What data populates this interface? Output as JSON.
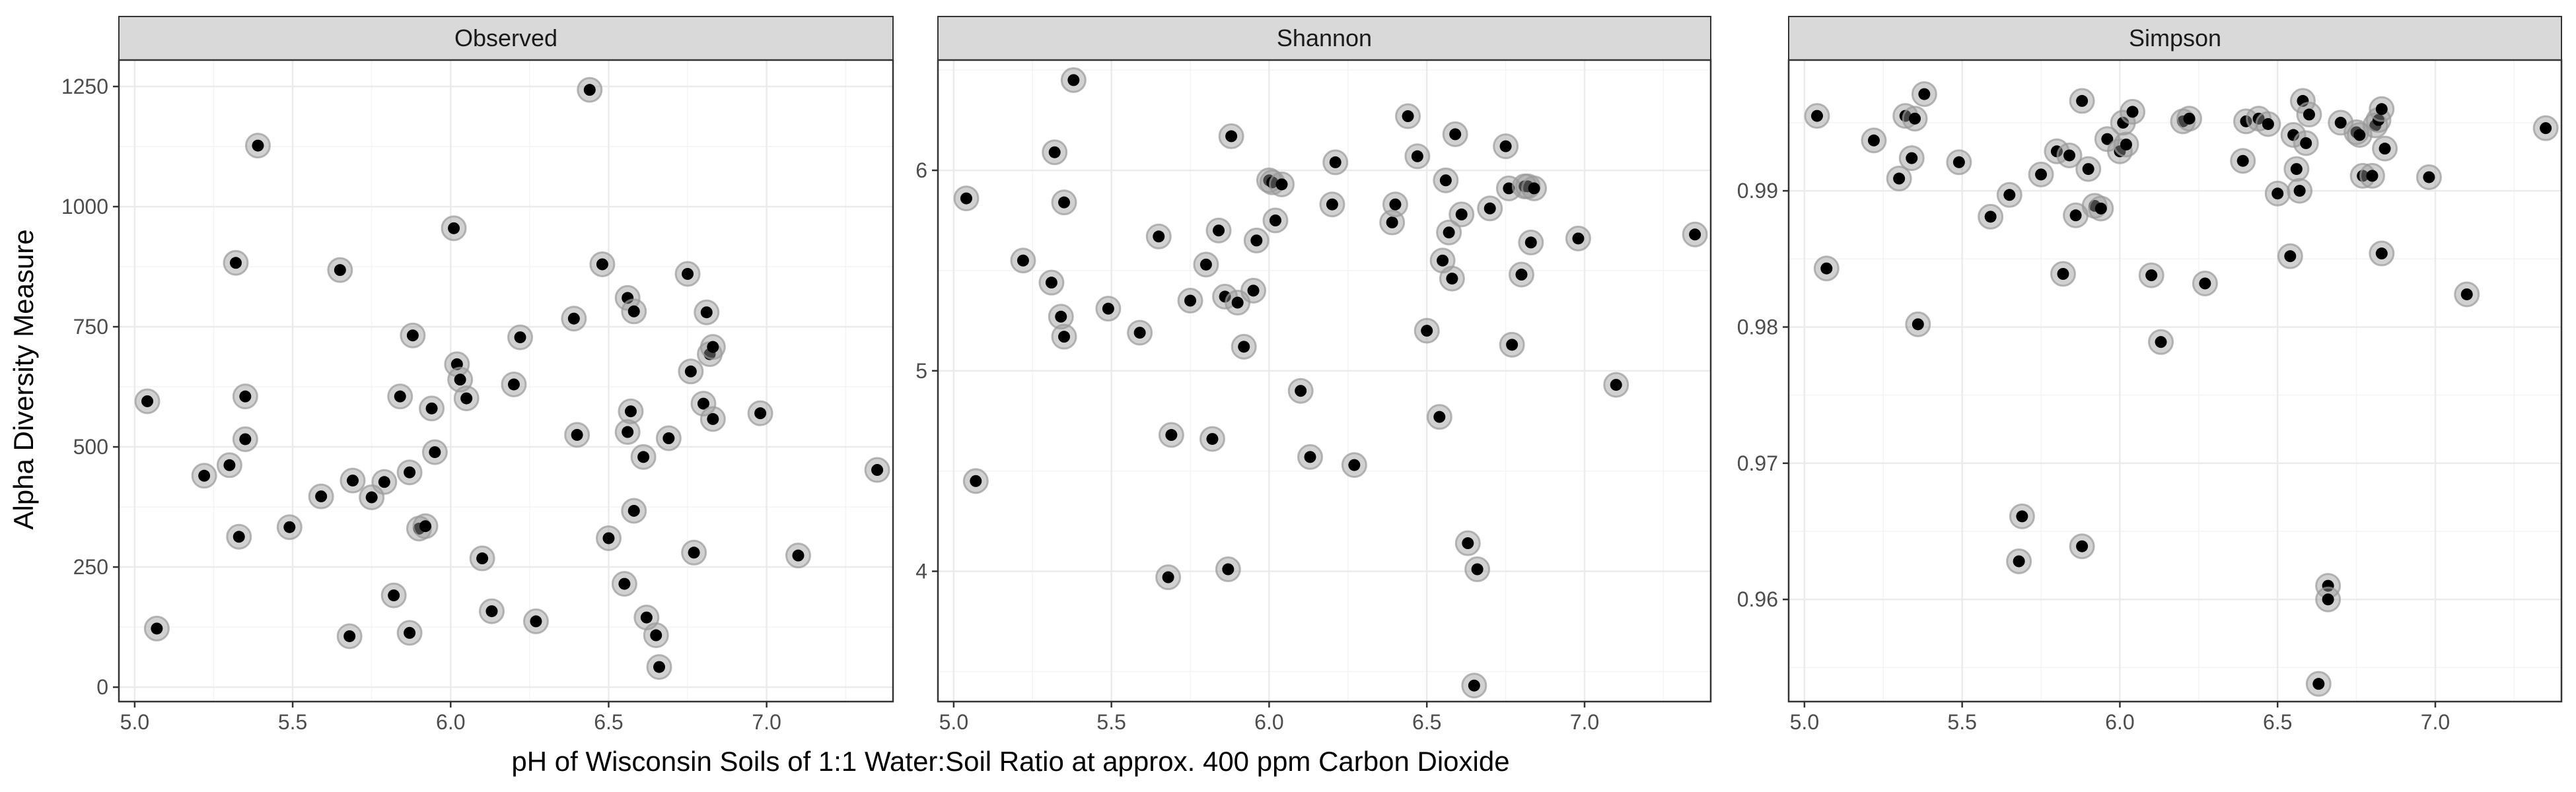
{
  "chart_data": {
    "type": "scatter",
    "facets_layout": "1 row, 3 columns, free y scales",
    "xlabel": "pH of Wisconsin Soils of 1:1 Water:Soil Ratio at approx. 400 ppm Carbon Dioxide",
    "ylabel": "Alpha Diversity Measure",
    "grid": true,
    "legend": "none",
    "colors": {
      "point": "#000000",
      "halo": "#9a9a9a",
      "strip_fill": "#d9d9d9",
      "panel_border": "#333333",
      "grid_major": "#ebebeb",
      "grid_minor": "#f4f4f4"
    },
    "panels": [
      {
        "name": "Observed",
        "xlim": [
          4.95,
          7.4
        ],
        "ylim": [
          -30,
          1305
        ],
        "x_ticks": [
          5.0,
          5.5,
          6.0,
          6.5,
          7.0
        ],
        "x_tick_labels": [
          "5.0",
          "5.5",
          "6.0",
          "6.5",
          "7.0"
        ],
        "y_ticks": [
          0,
          250,
          500,
          750,
          1000,
          1250
        ],
        "y_tick_labels": [
          "0",
          "250",
          "500",
          "750",
          "1000",
          "1250"
        ],
        "points": [
          [
            5.04,
            595
          ],
          [
            5.07,
            122
          ],
          [
            5.22,
            440
          ],
          [
            5.3,
            462
          ],
          [
            5.32,
            883
          ],
          [
            5.33,
            313
          ],
          [
            5.35,
            516
          ],
          [
            5.35,
            605
          ],
          [
            5.39,
            1127
          ],
          [
            5.49,
            333
          ],
          [
            5.59,
            397
          ],
          [
            5.65,
            868
          ],
          [
            5.68,
            106
          ],
          [
            5.69,
            430
          ],
          [
            5.75,
            395
          ],
          [
            5.79,
            427
          ],
          [
            5.82,
            191
          ],
          [
            5.84,
            605
          ],
          [
            5.87,
            447
          ],
          [
            5.87,
            113
          ],
          [
            5.88,
            732
          ],
          [
            5.9,
            330
          ],
          [
            5.92,
            335
          ],
          [
            5.94,
            580
          ],
          [
            5.95,
            489
          ],
          [
            6.01,
            955
          ],
          [
            6.02,
            672
          ],
          [
            6.03,
            640
          ],
          [
            6.05,
            601
          ],
          [
            6.1,
            268
          ],
          [
            6.13,
            158
          ],
          [
            6.2,
            630
          ],
          [
            6.22,
            728
          ],
          [
            6.27,
            137
          ],
          [
            6.39,
            767
          ],
          [
            6.4,
            525
          ],
          [
            6.44,
            1243
          ],
          [
            6.48,
            880
          ],
          [
            6.5,
            310
          ],
          [
            6.55,
            215
          ],
          [
            6.56,
            810
          ],
          [
            6.56,
            531
          ],
          [
            6.57,
            574
          ],
          [
            6.58,
            367
          ],
          [
            6.58,
            782
          ],
          [
            6.61,
            479
          ],
          [
            6.62,
            145
          ],
          [
            6.65,
            108
          ],
          [
            6.66,
            42
          ],
          [
            6.69,
            518
          ],
          [
            6.75,
            860
          ],
          [
            6.76,
            657
          ],
          [
            6.77,
            280
          ],
          [
            6.8,
            590
          ],
          [
            6.81,
            780
          ],
          [
            6.82,
            693
          ],
          [
            6.83,
            558
          ],
          [
            6.83,
            708
          ],
          [
            6.98,
            570
          ],
          [
            7.1,
            274
          ],
          [
            7.35,
            452
          ]
        ]
      },
      {
        "name": "Shannon",
        "xlim": [
          4.95,
          7.4
        ],
        "ylim": [
          3.35,
          6.55
        ],
        "x_ticks": [
          5.0,
          5.5,
          6.0,
          6.5,
          7.0
        ],
        "x_tick_labels": [
          "5.0",
          "5.5",
          "6.0",
          "6.5",
          "7.0"
        ],
        "y_ticks": [
          4,
          5,
          6
        ],
        "y_tick_labels": [
          "4",
          "5",
          "6"
        ],
        "points": [
          [
            5.04,
            5.86
          ],
          [
            5.07,
            4.45
          ],
          [
            5.22,
            5.55
          ],
          [
            5.31,
            5.44
          ],
          [
            5.32,
            6.09
          ],
          [
            5.34,
            5.27
          ],
          [
            5.35,
            5.17
          ],
          [
            5.35,
            5.84
          ],
          [
            5.38,
            6.45
          ],
          [
            5.49,
            5.31
          ],
          [
            5.59,
            5.19
          ],
          [
            5.65,
            5.67
          ],
          [
            5.68,
            3.97
          ],
          [
            5.69,
            4.68
          ],
          [
            5.75,
            5.35
          ],
          [
            5.8,
            5.53
          ],
          [
            5.82,
            4.66
          ],
          [
            5.84,
            5.7
          ],
          [
            5.86,
            5.37
          ],
          [
            5.87,
            4.01
          ],
          [
            5.88,
            6.17
          ],
          [
            5.9,
            5.34
          ],
          [
            5.92,
            5.12
          ],
          [
            5.95,
            5.4
          ],
          [
            5.96,
            5.65
          ],
          [
            6.0,
            5.95
          ],
          [
            6.01,
            5.94
          ],
          [
            6.02,
            5.75
          ],
          [
            6.04,
            5.93
          ],
          [
            6.1,
            4.9
          ],
          [
            6.13,
            4.57
          ],
          [
            6.2,
            5.83
          ],
          [
            6.21,
            6.04
          ],
          [
            6.27,
            4.53
          ],
          [
            6.39,
            5.74
          ],
          [
            6.4,
            5.83
          ],
          [
            6.44,
            6.27
          ],
          [
            6.47,
            6.07
          ],
          [
            6.5,
            5.2
          ],
          [
            6.54,
            4.77
          ],
          [
            6.55,
            5.55
          ],
          [
            6.56,
            5.95
          ],
          [
            6.57,
            5.69
          ],
          [
            6.58,
            5.46
          ],
          [
            6.59,
            6.18
          ],
          [
            6.61,
            5.78
          ],
          [
            6.63,
            4.14
          ],
          [
            6.65,
            3.43
          ],
          [
            6.66,
            4.01
          ],
          [
            6.7,
            5.81
          ],
          [
            6.75,
            6.12
          ],
          [
            6.76,
            5.91
          ],
          [
            6.77,
            5.13
          ],
          [
            6.8,
            5.48
          ],
          [
            6.81,
            5.92
          ],
          [
            6.82,
            5.92
          ],
          [
            6.83,
            5.64
          ],
          [
            6.84,
            5.91
          ],
          [
            6.98,
            5.66
          ],
          [
            7.1,
            4.93
          ],
          [
            7.35,
            5.68
          ]
        ]
      },
      {
        "name": "Simpson",
        "xlim": [
          4.95,
          7.4
        ],
        "ylim": [
          0.9525,
          0.9996
        ],
        "x_ticks": [
          5.0,
          5.5,
          6.0,
          6.5,
          7.0
        ],
        "x_tick_labels": [
          "5.0",
          "5.5",
          "6.0",
          "6.5",
          "7.0"
        ],
        "y_ticks": [
          0.96,
          0.97,
          0.98,
          0.99
        ],
        "y_tick_labels": [
          "0.96",
          "0.97",
          "0.98",
          "0.99"
        ],
        "points": [
          [
            5.04,
            0.9955
          ],
          [
            5.07,
            0.9843
          ],
          [
            5.22,
            0.9937
          ],
          [
            5.3,
            0.9909
          ],
          [
            5.32,
            0.9955
          ],
          [
            5.34,
            0.9924
          ],
          [
            5.35,
            0.9953
          ],
          [
            5.36,
            0.9802
          ],
          [
            5.38,
            0.9971
          ],
          [
            5.49,
            0.9921
          ],
          [
            5.59,
            0.9881
          ],
          [
            5.65,
            0.9897
          ],
          [
            5.68,
            0.9628
          ],
          [
            5.69,
            0.9661
          ],
          [
            5.75,
            0.9912
          ],
          [
            5.8,
            0.9929
          ],
          [
            5.82,
            0.9839
          ],
          [
            5.84,
            0.9926
          ],
          [
            5.86,
            0.9882
          ],
          [
            5.88,
            0.9966
          ],
          [
            5.88,
            0.9639
          ],
          [
            5.9,
            0.9916
          ],
          [
            5.92,
            0.9889
          ],
          [
            5.94,
            0.9887
          ],
          [
            5.96,
            0.9938
          ],
          [
            6.0,
            0.9929
          ],
          [
            6.01,
            0.995
          ],
          [
            6.02,
            0.9934
          ],
          [
            6.04,
            0.9958
          ],
          [
            6.1,
            0.9838
          ],
          [
            6.13,
            0.9789
          ],
          [
            6.2,
            0.9951
          ],
          [
            6.22,
            0.9953
          ],
          [
            6.27,
            0.9832
          ],
          [
            6.39,
            0.9922
          ],
          [
            6.4,
            0.9951
          ],
          [
            6.44,
            0.9953
          ],
          [
            6.47,
            0.9949
          ],
          [
            6.5,
            0.9898
          ],
          [
            6.54,
            0.9852
          ],
          [
            6.55,
            0.9941
          ],
          [
            6.56,
            0.9916
          ],
          [
            6.57,
            0.99
          ],
          [
            6.58,
            0.9966
          ],
          [
            6.59,
            0.9935
          ],
          [
            6.6,
            0.9956
          ],
          [
            6.63,
            0.9538
          ],
          [
            6.66,
            0.961
          ],
          [
            6.66,
            0.96
          ],
          [
            6.7,
            0.995
          ],
          [
            6.75,
            0.9943
          ],
          [
            6.76,
            0.9941
          ],
          [
            6.77,
            0.9911
          ],
          [
            6.8,
            0.9911
          ],
          [
            6.81,
            0.9948
          ],
          [
            6.82,
            0.9952
          ],
          [
            6.83,
            0.9854
          ],
          [
            6.83,
            0.996
          ],
          [
            6.84,
            0.9931
          ],
          [
            6.98,
            0.991
          ],
          [
            7.1,
            0.9824
          ],
          [
            7.35,
            0.9946
          ]
        ]
      }
    ]
  }
}
